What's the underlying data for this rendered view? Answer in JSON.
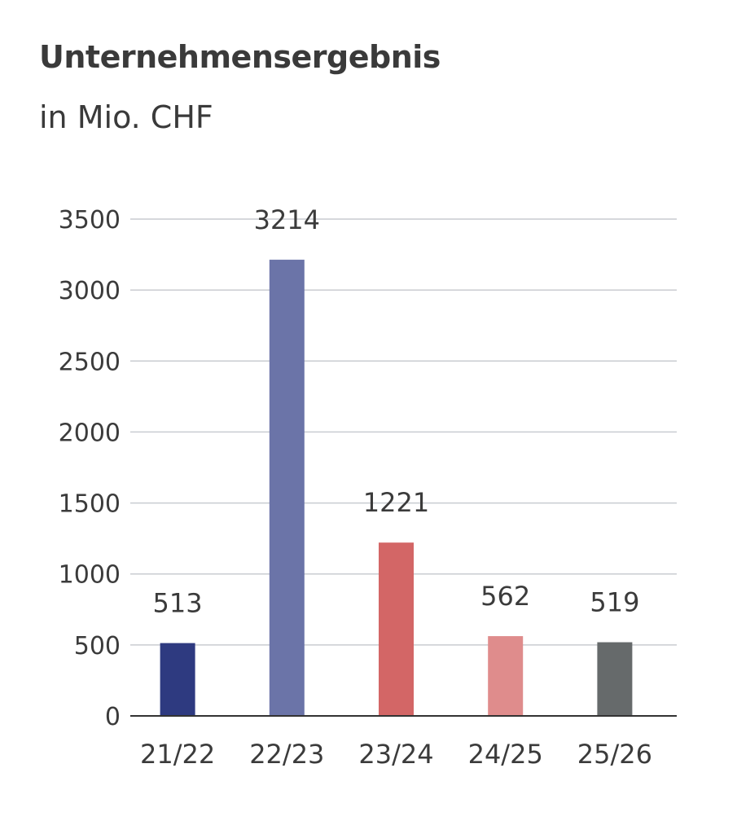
{
  "header": {
    "title": "Unternehmensergebnis",
    "subtitle": "in Mio. CHF"
  },
  "chart_data": {
    "type": "bar",
    "title": "Unternehmensergebnis",
    "subtitle": "in Mio. CHF",
    "xlabel": "",
    "ylabel": "",
    "categories": [
      "21/22",
      "22/23",
      "23/24",
      "24/25",
      "25/26"
    ],
    "values": [
      513,
      3214,
      1221,
      562,
      519
    ],
    "data_labels": [
      "513",
      "3214",
      "1221",
      "562",
      "519"
    ],
    "bar_colors": [
      "#2e3a80",
      "#6b74a8",
      "#d36666",
      "#df8c8c",
      "#666a6b"
    ],
    "ylim": [
      0,
      3500
    ],
    "yticks": [
      0,
      500,
      1000,
      1500,
      2000,
      2500,
      3000,
      3500
    ],
    "grid": true,
    "grid_color": "#c9ccd1",
    "legend": "none"
  }
}
